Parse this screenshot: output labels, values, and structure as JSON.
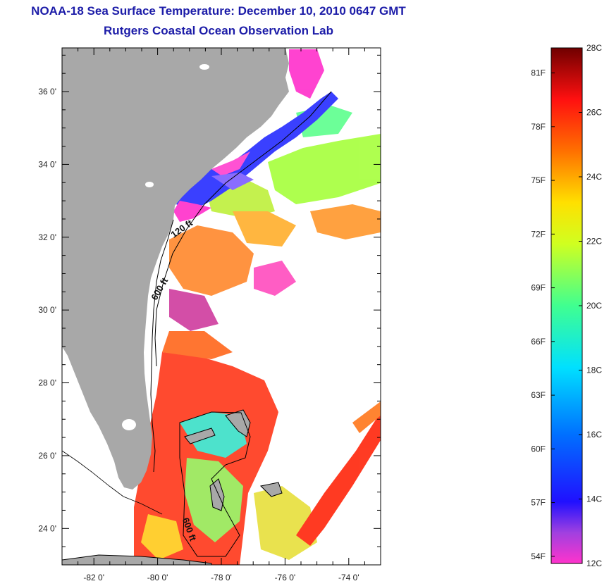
{
  "title_line1": "NOAA-18 Sea Surface Temperature:  December 10, 2010 0647 GMT",
  "title_line2": "Rutgers Coastal Ocean Observation Lab",
  "map": {
    "lat_ticks": [
      "36 0'",
      "34 0'",
      "32 0'",
      "30 0'",
      "28 0'",
      "26 0'",
      "24 0'"
    ],
    "lon_ticks": [
      "-82 0'",
      "-80 0'",
      "-78 0'",
      "-76 0'",
      "-74 0'"
    ],
    "lat_values": [
      36,
      34,
      32,
      30,
      28,
      26,
      24
    ],
    "lon_values": [
      -82,
      -80,
      -78,
      -76,
      -74
    ],
    "lat_range": [
      23,
      37.2
    ],
    "lon_range": [
      -83,
      -73
    ],
    "land_color": "#a8a8a8",
    "contours": [
      {
        "label": "120 ft"
      },
      {
        "label": "600 ft"
      },
      {
        "label": "600 ft"
      }
    ]
  },
  "colorbar": {
    "celsius_labels": [
      "28C",
      "26C",
      "24C",
      "22C",
      "20C",
      "18C",
      "16C",
      "14C",
      "12C"
    ],
    "fahrenheit_labels": [
      "81F",
      "78F",
      "75F",
      "72F",
      "69F",
      "66F",
      "63F",
      "60F",
      "57F",
      "54F"
    ],
    "celsius_values": [
      28,
      26,
      24,
      22,
      20,
      18,
      16,
      14,
      12
    ],
    "fahrenheit_values": [
      81,
      78,
      75,
      72,
      69,
      66,
      63,
      60,
      57,
      54
    ],
    "range_c": [
      12,
      28
    ]
  }
}
